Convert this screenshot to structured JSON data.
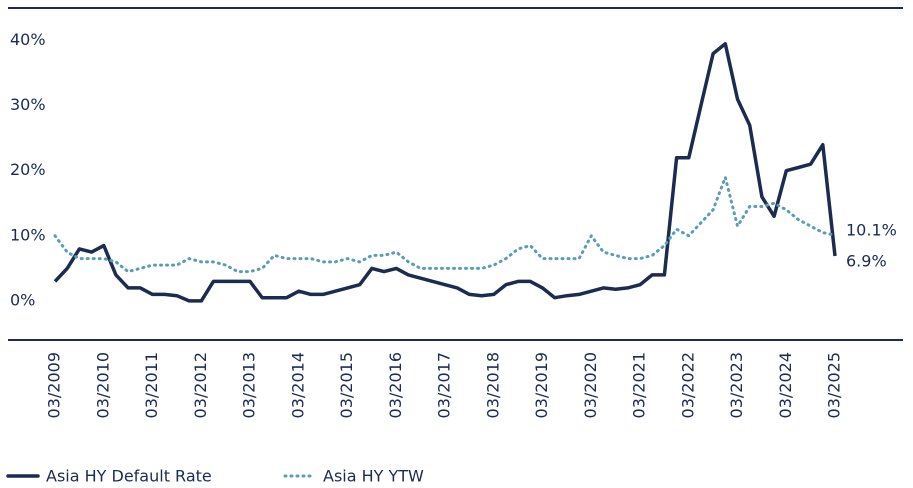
{
  "chart_data": {
    "type": "line",
    "x": [
      "03/2009",
      "06/2009",
      "09/2009",
      "12/2009",
      "03/2010",
      "06/2010",
      "09/2010",
      "12/2010",
      "03/2011",
      "06/2011",
      "09/2011",
      "12/2011",
      "03/2012",
      "06/2012",
      "09/2012",
      "12/2012",
      "03/2013",
      "06/2013",
      "09/2013",
      "12/2013",
      "03/2014",
      "06/2014",
      "09/2014",
      "12/2014",
      "03/2015",
      "06/2015",
      "09/2015",
      "12/2015",
      "03/2016",
      "06/2016",
      "09/2016",
      "12/2016",
      "03/2017",
      "06/2017",
      "09/2017",
      "12/2017",
      "03/2018",
      "06/2018",
      "09/2018",
      "12/2018",
      "03/2019",
      "06/2019",
      "09/2019",
      "12/2019",
      "03/2020",
      "06/2020",
      "09/2020",
      "12/2020",
      "03/2021",
      "06/2021",
      "09/2021",
      "12/2021",
      "03/2022",
      "06/2022",
      "09/2022",
      "12/2022",
      "03/2023",
      "06/2023",
      "09/2023",
      "12/2023",
      "03/2024",
      "06/2024",
      "09/2024",
      "12/2024",
      "03/2025"
    ],
    "series": [
      {
        "name": "Asia HY Default Rate",
        "color": "#1c2b4f",
        "style": "solid",
        "end_label": "6.9%",
        "values": [
          3,
          5,
          8,
          7.5,
          8.5,
          4,
          2,
          2,
          1,
          1,
          0.8,
          0,
          0,
          3,
          3,
          3,
          3,
          0.5,
          0.5,
          0.5,
          1.5,
          1,
          1,
          1.5,
          2,
          2.5,
          5,
          4.5,
          5,
          4,
          3.5,
          3,
          2.5,
          2,
          1,
          0.8,
          1,
          2.5,
          3,
          3,
          2,
          0.5,
          0.8,
          1,
          1.5,
          2,
          1.8,
          2,
          2.5,
          4,
          4,
          22,
          22,
          30,
          38,
          39.5,
          31,
          27,
          16,
          13,
          20,
          20.5,
          21,
          24,
          6.9
        ]
      },
      {
        "name": "Asia HY YTW",
        "color": "#5b9db5",
        "style": "dotted",
        "end_label": "10.1%",
        "values": [
          10,
          7.5,
          6.5,
          6.5,
          6.5,
          6,
          4.5,
          5,
          5.5,
          5.5,
          5.5,
          6.5,
          6,
          6,
          5.5,
          4.5,
          4.5,
          5,
          7,
          6.5,
          6.5,
          6.5,
          6,
          6,
          6.5,
          6,
          7,
          7,
          7.5,
          6,
          5,
          5,
          5,
          5,
          5,
          5,
          5.5,
          6.5,
          8,
          8.5,
          6.5,
          6.5,
          6.5,
          6.5,
          10,
          7.5,
          7,
          6.5,
          6.5,
          7,
          8.5,
          11,
          10,
          12,
          14,
          19,
          11.5,
          14.5,
          14.5,
          15,
          14,
          12.5,
          11.5,
          10.5,
          10.1
        ]
      }
    ],
    "ylim": [
      -6,
      45
    ],
    "yticks": [
      {
        "value": 0,
        "label": "0%"
      },
      {
        "value": 10,
        "label": "10%"
      },
      {
        "value": 20,
        "label": "20%"
      },
      {
        "value": 30,
        "label": "30%"
      },
      {
        "value": 40,
        "label": "40%"
      }
    ],
    "xticks": [
      "03/2009",
      "03/2010",
      "03/2011",
      "03/2012",
      "03/2013",
      "03/2014",
      "03/2015",
      "03/2016",
      "03/2017",
      "03/2018",
      "03/2019",
      "03/2020",
      "03/2021",
      "03/2022",
      "03/2023",
      "03/2024",
      "03/2025"
    ]
  }
}
